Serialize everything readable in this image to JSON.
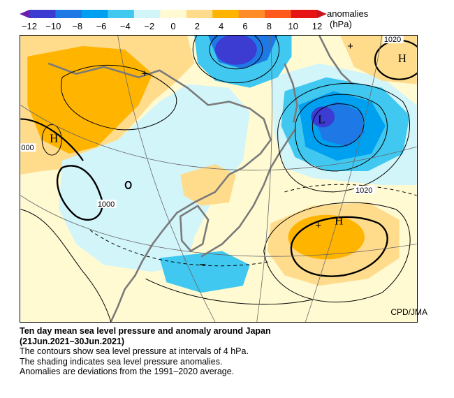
{
  "legend": {
    "title": "anomalies",
    "unit": "(hPa)",
    "ticks": [
      "−12",
      "−10",
      "−8",
      "−6",
      "−4",
      "−2",
      "0",
      "2",
      "4",
      "6",
      "8",
      "10",
      "12"
    ],
    "colors": [
      "#3c3cd2",
      "#1e78e6",
      "#00a0f0",
      "#40c8f0",
      "#d2f5fa",
      "#fffad2",
      "#ffdc8c",
      "#ffb400",
      "#ff8c28",
      "#ff5a1e",
      "#e61414"
    ]
  },
  "map": {
    "credit": "CPD/JMA",
    "labels": {
      "high_nw": "H",
      "high_ne": "H",
      "high_se": "H",
      "low_center": "L",
      "neg_anom": "−",
      "c1000_left": "000",
      "c1000_center": "1000",
      "c1020_top": "1020",
      "c1020_right": "1020"
    }
  },
  "caption": {
    "title": "Ten day mean sea level pressure and anomaly around Japan",
    "period": "(21Jun.2021–30Jun.2021)",
    "line1": "The contours show sea level pressure at intervals of 4 hPa.",
    "line2": "The shading indicates sea level pressure anomalies.",
    "line3": "Anomalies are deviations from the 1991–2020 average."
  }
}
